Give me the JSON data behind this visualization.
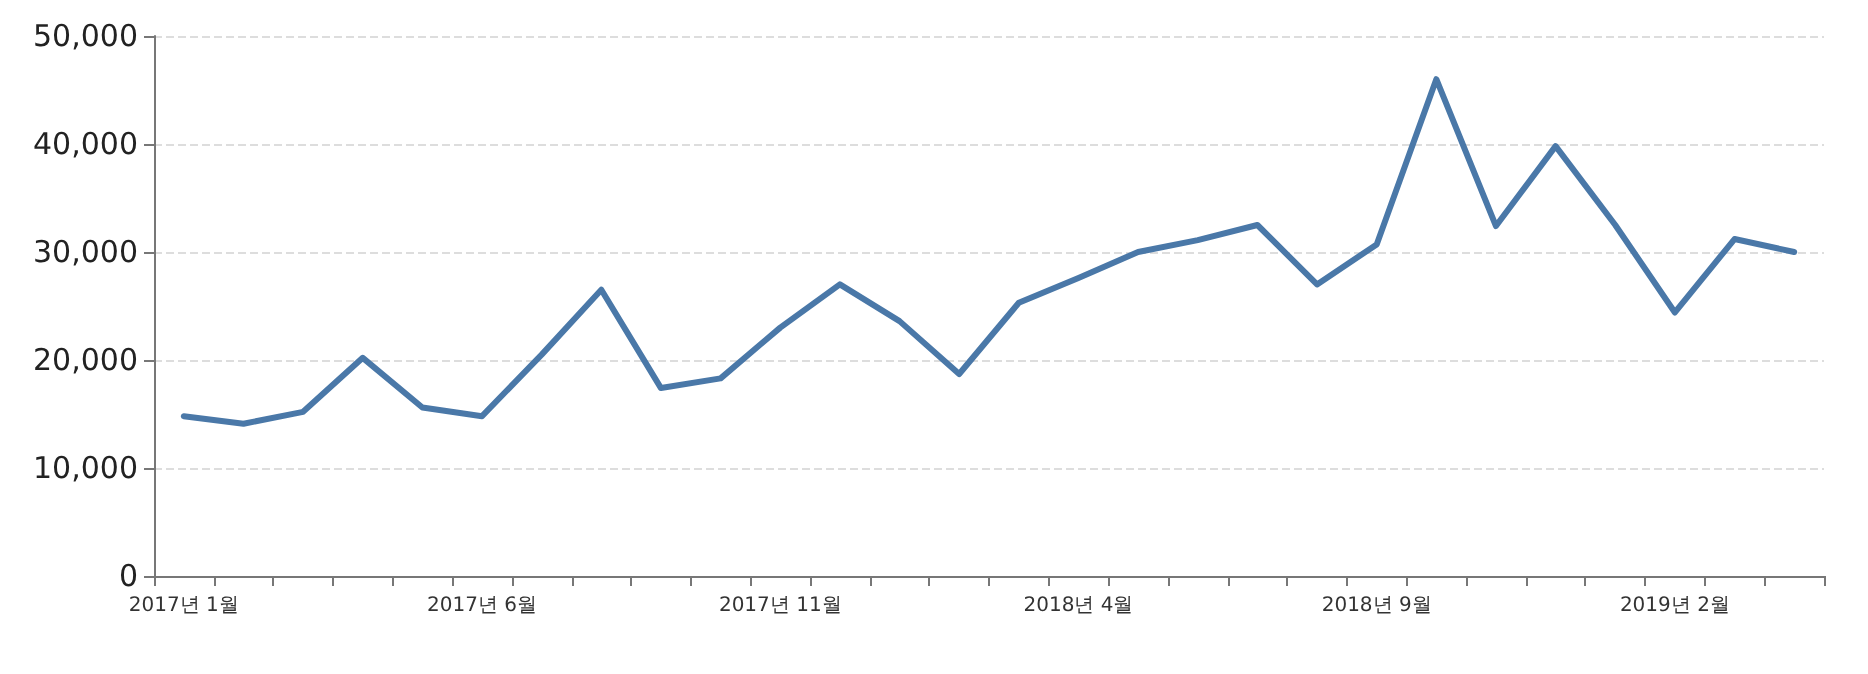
{
  "chart_data": {
    "type": "line",
    "categories": [
      "2017년 1월",
      null,
      null,
      null,
      null,
      "2017년 6월",
      null,
      null,
      null,
      null,
      "2017년 11월",
      null,
      null,
      null,
      null,
      "2018년 4월",
      null,
      null,
      null,
      null,
      "2018년 9월",
      null,
      null,
      null,
      null,
      "2019년 2월",
      null,
      null
    ],
    "series": [
      {
        "color": "#4a78a8",
        "values": [
          14800,
          14100,
          15200,
          20200,
          15600,
          14800,
          20500,
          26500,
          17400,
          18300,
          23000,
          27000,
          23600,
          18700,
          25300,
          27600,
          30000,
          31100,
          32500,
          27000,
          30700,
          46000,
          32400,
          39800,
          32500,
          24400,
          31200,
          30000
        ]
      }
    ],
    "ylim": [
      0,
      50000
    ],
    "yticks": [
      0,
      {
        "value": 10000,
        "label": "10,000"
      },
      {
        "value": 20000,
        "label": "20,000"
      },
      {
        "value": 30000,
        "label": "30,000"
      },
      {
        "value": 40000,
        "label": "40,000"
      },
      {
        "value": 50000,
        "label": "50,000"
      }
    ],
    "grid": "y",
    "marker": "none",
    "line_style": "solid"
  }
}
